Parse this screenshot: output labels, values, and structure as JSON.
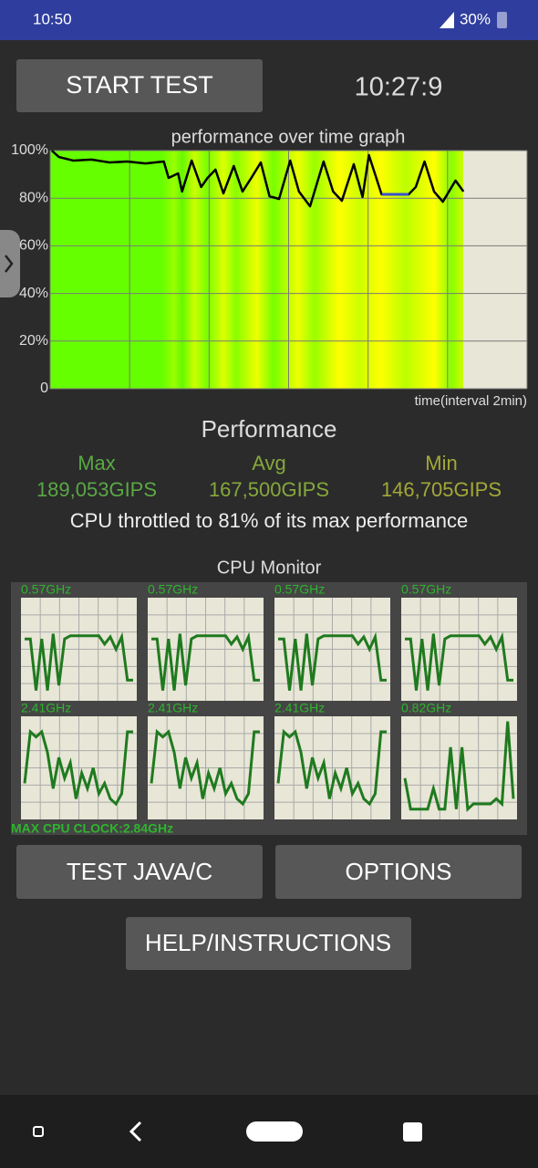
{
  "status_bar": {
    "time": "10:50",
    "battery": "30%"
  },
  "start_button": "START TEST",
  "timer": "10:27:9",
  "chart_data": {
    "type": "line",
    "title": "performance over time graph",
    "x_label": "time(interval 2min)",
    "x": [
      0.02,
      0.11,
      0.29,
      0.52,
      0.75,
      0.97,
      1.2,
      1.43,
      1.49,
      1.61,
      1.66,
      1.78,
      1.9,
      1.98,
      2.08,
      2.18,
      2.31,
      2.42,
      2.53,
      2.65,
      2.76,
      2.88,
      3.02,
      3.13,
      3.27,
      3.44,
      3.56,
      3.67,
      3.82,
      3.93,
      4.01,
      4.17,
      4.51,
      4.6,
      4.71,
      4.83,
      4.94,
      5.1,
      5.2
    ],
    "series": [
      {
        "color": "#000000",
        "values": [
          100,
          97.3,
          95.8,
          96.2,
          95,
          95.4,
          94.6,
          95.4,
          88.5,
          90.4,
          82.8,
          95.8,
          84.7,
          88.5,
          92,
          82,
          93.5,
          82.8,
          88.5,
          95,
          80.8,
          79.7,
          95.8,
          82.8,
          76.6,
          95.4,
          82.8,
          78.9,
          94.3,
          80.5,
          98.1,
          81.6,
          81.6,
          84.7,
          95.4,
          82.8,
          78.5,
          87.4,
          82.8
        ]
      },
      {
        "color": "#3a4fd0",
        "values": [
          null,
          null,
          null,
          null,
          null,
          null,
          null,
          null,
          null,
          null,
          null,
          null,
          null,
          null,
          null,
          null,
          null,
          null,
          null,
          null,
          null,
          null,
          null,
          null,
          null,
          null,
          null,
          null,
          null,
          null,
          null,
          81.6,
          81.6,
          null,
          null,
          null,
          null,
          null,
          null
        ]
      }
    ],
    "xlim": [
      0,
      6
    ],
    "xticks": [
      0,
      1,
      2,
      3,
      4,
      5,
      6
    ],
    "ylim": [
      0,
      100
    ],
    "yticks": [
      0,
      {
        "value": 20,
        "label": "20%"
      },
      {
        "value": 40,
        "label": "40%"
      },
      {
        "value": 60,
        "label": "60%"
      },
      {
        "value": 80,
        "label": "80%"
      },
      {
        "value": 100,
        "label": "100%"
      }
    ],
    "grid": true
  },
  "performance": {
    "title": "Performance",
    "stats": [
      {
        "label": "Max",
        "value": "189,053GIPS",
        "color": "#5aa845"
      },
      {
        "label": "Avg",
        "value": "167,500GIPS",
        "color": "#86a83c"
      },
      {
        "label": "Min",
        "value": "146,705GIPS",
        "color": "#a3a838"
      }
    ],
    "summary": "CPU throttled to 81% of its max performance"
  },
  "cpu_monitor": {
    "title": "CPU Monitor",
    "ylim": [
      0,
      100
    ],
    "cores": [
      {
        "freq": "0.57GHz",
        "values": [
          60,
          60,
          10,
          60,
          10,
          65,
          15,
          60,
          63,
          63,
          63,
          63,
          63,
          63,
          55,
          62,
          50,
          62,
          20,
          20
        ]
      },
      {
        "freq": "0.57GHz",
        "values": [
          60,
          60,
          10,
          60,
          10,
          65,
          15,
          60,
          63,
          63,
          63,
          63,
          63,
          63,
          55,
          62,
          50,
          62,
          20,
          20
        ]
      },
      {
        "freq": "0.57GHz",
        "values": [
          60,
          60,
          10,
          60,
          10,
          65,
          15,
          60,
          63,
          63,
          63,
          63,
          63,
          63,
          55,
          62,
          50,
          62,
          20,
          20
        ]
      },
      {
        "freq": "0.57GHz",
        "values": [
          60,
          60,
          10,
          60,
          10,
          65,
          15,
          60,
          63,
          63,
          63,
          63,
          63,
          63,
          55,
          62,
          50,
          62,
          20,
          20
        ]
      },
      {
        "freq": "2.41GHz",
        "values": [
          35,
          85,
          80,
          85,
          65,
          30,
          60,
          40,
          55,
          20,
          45,
          30,
          50,
          25,
          35,
          20,
          15,
          25,
          85,
          85
        ]
      },
      {
        "freq": "2.41GHz",
        "values": [
          35,
          85,
          80,
          85,
          65,
          30,
          60,
          40,
          55,
          20,
          45,
          30,
          50,
          25,
          35,
          20,
          15,
          25,
          85,
          85
        ]
      },
      {
        "freq": "2.41GHz",
        "values": [
          35,
          85,
          80,
          85,
          65,
          30,
          60,
          40,
          55,
          20,
          45,
          30,
          50,
          25,
          35,
          20,
          15,
          25,
          85,
          85
        ]
      },
      {
        "freq": "0.82GHz",
        "values": [
          40,
          10,
          10,
          10,
          10,
          30,
          10,
          10,
          70,
          10,
          70,
          10,
          15,
          15,
          15,
          15,
          20,
          15,
          95,
          20
        ]
      }
    ],
    "max_clock": "MAX CPU CLOCK:2.84GHz"
  },
  "buttons": {
    "java": "TEST JAVA/C",
    "options": "OPTIONS",
    "help": "HELP/INSTRUCTIONS"
  }
}
